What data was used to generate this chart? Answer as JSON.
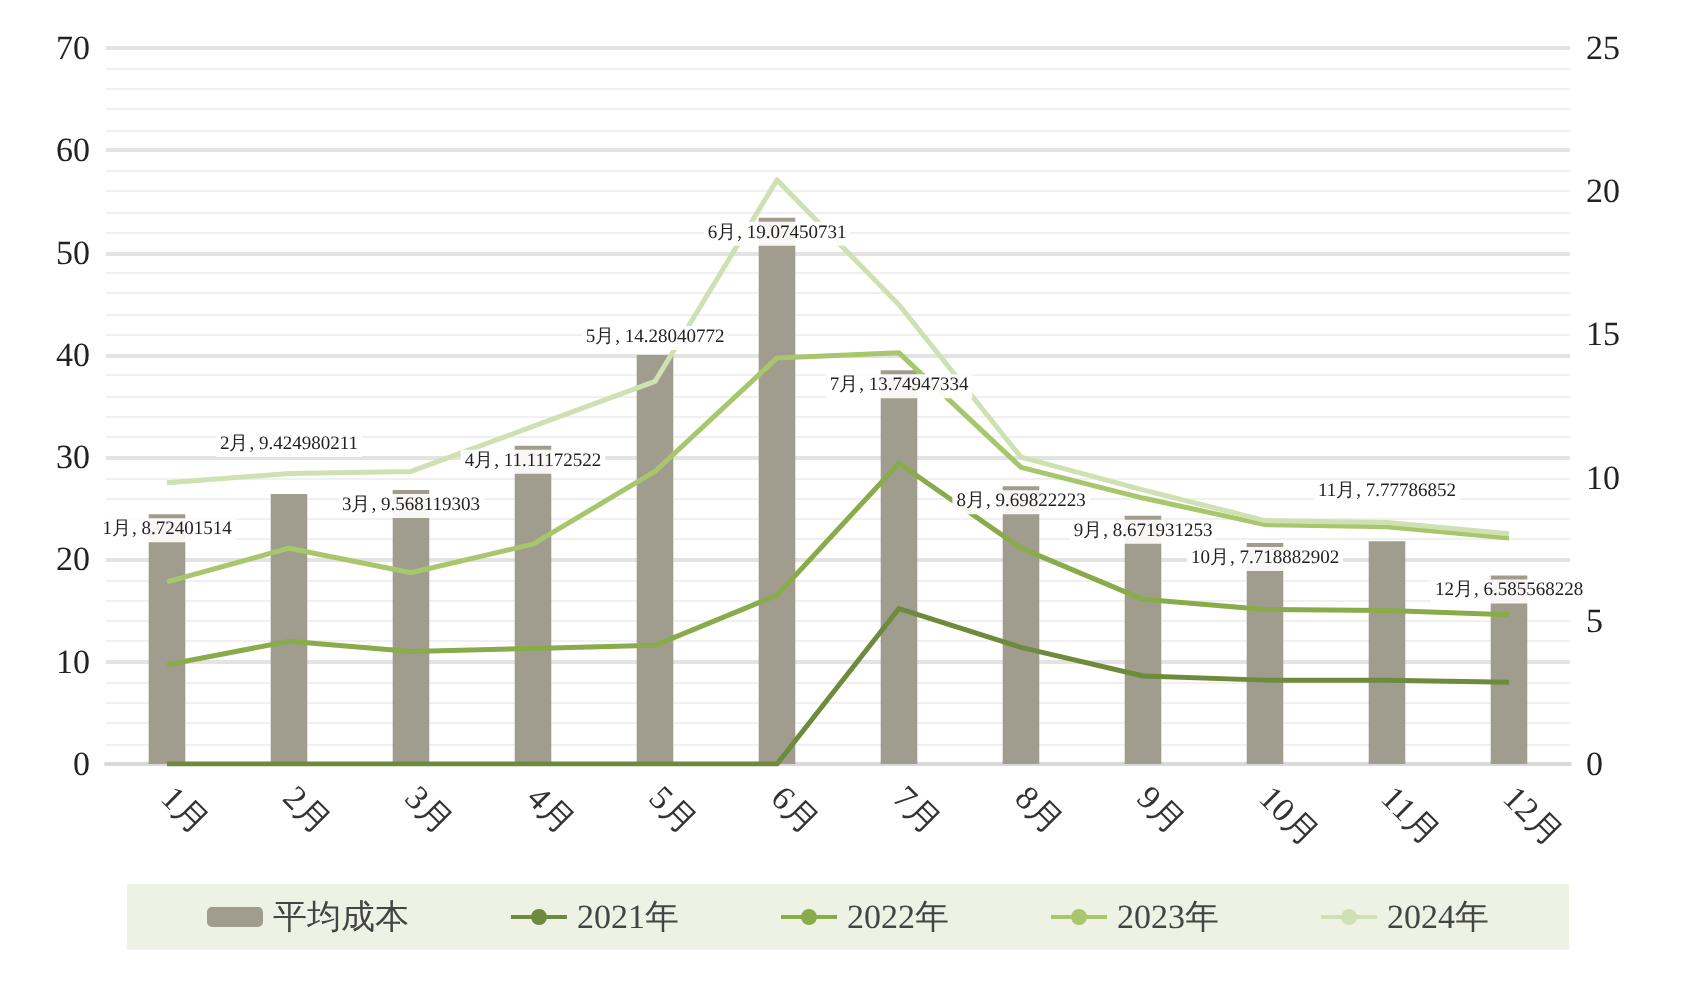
{
  "chart_data": {
    "type": "bar",
    "categories": [
      "1月",
      "2月",
      "3月",
      "4月",
      "5月",
      "6月",
      "7月",
      "8月",
      "9月",
      "10月",
      "11月",
      "12月"
    ],
    "series": [
      {
        "name": "平均成本",
        "axis": "y2",
        "color": "#a09d8e",
        "values": [
          8.72401514,
          9.424980211,
          9.568119303,
          11.11172522,
          14.28040772,
          19.07450731,
          13.74947334,
          9.69822223,
          8.671931253,
          7.718882902,
          7.77786852,
          6.585568228
        ],
        "value_labels": [
          "1月, 8.72401514",
          "2月, 9.424980211",
          "3月, 9.568119303",
          "4月, 11.11172522",
          "5月, 14.28040772",
          "6月, 19.07450731",
          "7月, 13.74947334",
          "8月, 9.69822223",
          "9月, 8.671931253",
          "10月, 7.718882902",
          "11月, 7.77786852",
          "12月, 6.585568228"
        ]
      },
      {
        "name": "2021年",
        "type": "line",
        "color": "#6e8b3d",
        "values": [
          0,
          0,
          0,
          0,
          0,
          0,
          15.2,
          11.4,
          8.6,
          8.2,
          8.2,
          8.0
        ]
      },
      {
        "name": "2022年",
        "type": "line",
        "color": "#8aab4a",
        "values": [
          9.7,
          12.0,
          11.0,
          11.3,
          11.6,
          16.5,
          29.4,
          21.1,
          16.1,
          15.1,
          15.0,
          14.6
        ]
      },
      {
        "name": "2023年",
        "type": "line",
        "color": "#a8c66c",
        "values": [
          17.8,
          21.1,
          18.7,
          21.5,
          28.6,
          39.7,
          40.2,
          29.0,
          26.0,
          23.4,
          23.2,
          22.1
        ]
      },
      {
        "name": "2024年",
        "type": "line",
        "color": "#cfe0b3",
        "values": [
          27.5,
          28.4,
          28.6,
          33.0,
          37.4,
          57.1,
          44.9,
          30.0,
          26.8,
          23.8,
          23.6,
          22.5
        ]
      }
    ],
    "ylim": [
      0,
      70
    ],
    "yticks": [
      0,
      10,
      20,
      30,
      40,
      50,
      60,
      70
    ],
    "y2lim": [
      0,
      25
    ],
    "y2ticks": [
      0,
      5,
      10,
      15,
      20,
      25
    ],
    "grid": "y",
    "legend": "bottom",
    "marker": "none",
    "line_style": "solid"
  }
}
